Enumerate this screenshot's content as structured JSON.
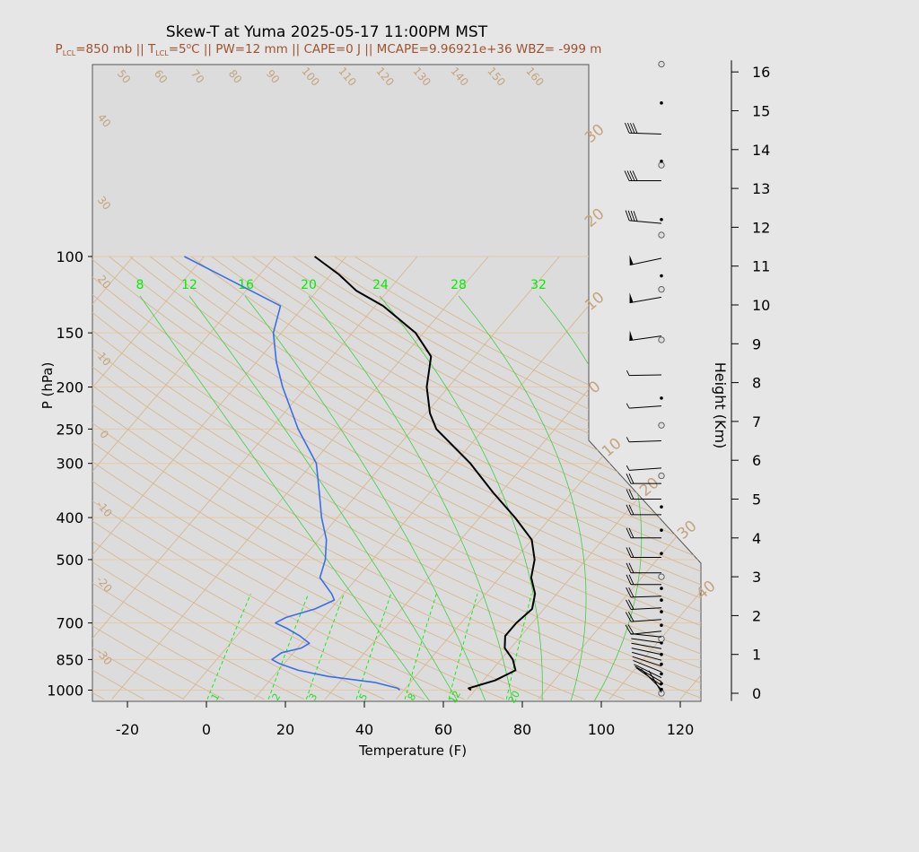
{
  "chart_data": {
    "type": "line",
    "title": "Skew-T at Yuma 2025-05-17 11:00PM MST",
    "subtitle": {
      "p_lcl": "=850 mb || T",
      "t_lcl": "=5",
      "pw_cape": "C || PW=12 mm || CAPE=0 J || MCAPE=9.96921e+36 WBZ= -999 m"
    },
    "xlabel": "Temperature (F)",
    "ylabel": "P (hPa)",
    "height_label": "Height (Km)",
    "x_ticks": [
      "-20",
      "0",
      "20",
      "40",
      "60",
      "80",
      "100",
      "120"
    ],
    "y_ticks": [
      "100",
      "150",
      "200",
      "250",
      "300",
      "400",
      "500",
      "700",
      "850",
      "1000"
    ],
    "height_ticks": [
      "0",
      "1",
      "2",
      "3",
      "4",
      "5",
      "6",
      "7",
      "8",
      "9",
      "10",
      "11",
      "12",
      "13",
      "14",
      "15",
      "16"
    ],
    "mixing_ratio_labels_top": [
      "8",
      "12",
      "16",
      "20",
      "24",
      "28",
      "32"
    ],
    "mixing_ratio_labels_bottom": [
      "1",
      "2",
      "3",
      "5",
      "8",
      "12",
      "20"
    ],
    "dry_adiabat_labels": [
      "50",
      "60",
      "70",
      "80",
      "90",
      "100",
      "110",
      "120",
      "130",
      "140",
      "150",
      "160"
    ],
    "left_isotherm_labels": [
      "40",
      "30",
      "20",
      "10",
      "0",
      "-10",
      "-20",
      "-30"
    ],
    "right_isotherm_labels": [
      "30",
      "20",
      "10",
      "0",
      "10",
      "20",
      "30",
      "40"
    ],
    "series": [
      {
        "name": "Temperature",
        "color": "#000000",
        "pressure": [
          1000,
          990,
          950,
          900,
          850,
          800,
          750,
          700,
          650,
          600,
          550,
          500,
          450,
          400,
          350,
          300,
          250,
          230,
          200,
          170,
          150,
          130,
          120,
          110,
          100
        ],
        "temperature_f": [
          67,
          66,
          71,
          74,
          71,
          66.5,
          64,
          64,
          65,
          62.5,
          58,
          55,
          50,
          41,
          30,
          18,
          2,
          -3,
          -9.5,
          -15,
          -24,
          -38,
          -48,
          -56,
          -66
        ]
      },
      {
        "name": "Dewpoint",
        "color": "#3a6de8",
        "pressure": [
          1000,
          990,
          960,
          930,
          900,
          870,
          850,
          820,
          800,
          780,
          750,
          720,
          700,
          680,
          650,
          620,
          600,
          550,
          500,
          450,
          400,
          350,
          300,
          250,
          200,
          175,
          150,
          130,
          100
        ],
        "temperature_f": [
          49,
          48,
          41,
          28,
          19,
          13,
          10,
          11,
          15,
          16,
          12,
          7,
          3,
          4.5,
          10,
          13,
          11,
          4.5,
          2,
          -2,
          -8,
          -14,
          -21,
          -33,
          -46,
          -53,
          -60,
          -64,
          -99
        ]
      }
    ],
    "wind_barbs": [
      {
        "km": 0.02,
        "shaft": 28,
        "ang": 60,
        "flags": 0,
        "full": 0,
        "half": 0
      },
      {
        "km": 0.1,
        "shaft": 32,
        "ang": 45,
        "flags": 0,
        "full": 0,
        "half": 0
      },
      {
        "km": 0.2,
        "shaft": 34,
        "ang": 35,
        "flags": 0,
        "full": 0,
        "half": 0
      },
      {
        "km": 0.3,
        "shaft": 34,
        "ang": 30,
        "flags": 0,
        "full": 0,
        "half": 0
      },
      {
        "km": 0.4,
        "shaft": 34,
        "ang": 26,
        "flags": 0,
        "full": 0,
        "half": 0
      },
      {
        "km": 0.55,
        "shaft": 34,
        "ang": 22,
        "flags": 0,
        "full": 0,
        "half": 0
      },
      {
        "km": 0.7,
        "shaft": 34,
        "ang": 18,
        "flags": 0,
        "full": 0,
        "half": 0
      },
      {
        "km": 0.85,
        "shaft": 34,
        "ang": 15,
        "flags": 0,
        "full": 0,
        "half": 0
      },
      {
        "km": 1.0,
        "shaft": 34,
        "ang": 12,
        "flags": 0,
        "full": 0,
        "half": 0
      },
      {
        "km": 1.15,
        "shaft": 34,
        "ang": 10,
        "flags": 0,
        "full": 0,
        "half": 0
      },
      {
        "km": 1.3,
        "shaft": 34,
        "ang": 8,
        "flags": 0,
        "full": 0,
        "half": 0
      },
      {
        "km": 1.45,
        "shaft": 34,
        "ang": 6,
        "flags": 0,
        "full": 0,
        "half": 0
      },
      {
        "km": 1.6,
        "shaft": 34,
        "ang": -6,
        "flags": 0,
        "full": 2,
        "half": 0
      },
      {
        "km": 1.9,
        "shaft": 34,
        "ang": -4,
        "flags": 0,
        "full": 2,
        "half": 0
      },
      {
        "km": 2.2,
        "shaft": 34,
        "ang": -3,
        "flags": 0,
        "full": 2,
        "half": 0
      },
      {
        "km": 2.5,
        "shaft": 34,
        "ang": -2,
        "flags": 0,
        "full": 2,
        "half": 0
      },
      {
        "km": 2.8,
        "shaft": 34,
        "ang": 0,
        "flags": 0,
        "full": 2,
        "half": 0
      },
      {
        "km": 3.1,
        "shaft": 34,
        "ang": 0,
        "flags": 0,
        "full": 2,
        "half": 0
      },
      {
        "km": 3.5,
        "shaft": 34,
        "ang": 0,
        "flags": 0,
        "full": 2,
        "half": 0
      },
      {
        "km": 4.0,
        "shaft": 34,
        "ang": 0,
        "flags": 0,
        "full": 2,
        "half": 0
      },
      {
        "km": 4.6,
        "shaft": 34,
        "ang": 0,
        "flags": 0,
        "full": 2,
        "half": 0
      },
      {
        "km": 5.0,
        "shaft": 34,
        "ang": 0,
        "flags": 0,
        "full": 2,
        "half": 0
      },
      {
        "km": 5.4,
        "shaft": 34,
        "ang": 0,
        "flags": 0,
        "full": 2,
        "half": 0
      },
      {
        "km": 5.8,
        "shaft": 36,
        "ang": -4,
        "flags": 0,
        "full": 0,
        "half": 1
      },
      {
        "km": 6.5,
        "shaft": 36,
        "ang": -2,
        "flags": 0,
        "full": 0,
        "half": 1
      },
      {
        "km": 7.4,
        "shaft": 36,
        "ang": -4,
        "flags": 0,
        "full": 0,
        "half": 1
      },
      {
        "km": 8.2,
        "shaft": 36,
        "ang": -1,
        "flags": 0,
        "full": 0,
        "half": 1
      },
      {
        "km": 9.2,
        "shaft": 36,
        "ang": -8,
        "flags": 1,
        "full": 0,
        "half": 0
      },
      {
        "km": 10.2,
        "shaft": 36,
        "ang": -10,
        "flags": 1,
        "full": 0,
        "half": 0
      },
      {
        "km": 11.2,
        "shaft": 36,
        "ang": -12,
        "flags": 1,
        "full": 0,
        "half": 0
      },
      {
        "km": 12.1,
        "shaft": 36,
        "ang": 5,
        "flags": 0,
        "full": 4,
        "half": 0
      },
      {
        "km": 13.2,
        "shaft": 36,
        "ang": 0,
        "flags": 0,
        "full": 4,
        "half": 0
      },
      {
        "km": 14.4,
        "shaft": 36,
        "ang": 2,
        "flags": 0,
        "full": 4,
        "half": 0
      }
    ],
    "height_markers": [
      {
        "km": 0.0,
        "symbol": "circle"
      },
      {
        "km": 0.1,
        "symbol": "dot"
      },
      {
        "km": 0.25,
        "symbol": "dot"
      },
      {
        "km": 0.5,
        "symbol": "dot"
      },
      {
        "km": 0.75,
        "symbol": "dot"
      },
      {
        "km": 1.0,
        "symbol": "dot"
      },
      {
        "km": 1.3,
        "symbol": "dot"
      },
      {
        "km": 1.4,
        "symbol": "circle"
      },
      {
        "km": 1.75,
        "symbol": "dot"
      },
      {
        "km": 2.1,
        "symbol": "dot"
      },
      {
        "km": 2.4,
        "symbol": "dot"
      },
      {
        "km": 2.7,
        "symbol": "dot"
      },
      {
        "km": 3.0,
        "symbol": "circle"
      },
      {
        "km": 3.6,
        "symbol": "dot"
      },
      {
        "km": 4.2,
        "symbol": "dot"
      },
      {
        "km": 4.8,
        "symbol": "dot"
      },
      {
        "km": 5.6,
        "symbol": "circle"
      },
      {
        "km": 6.9,
        "symbol": "circle"
      },
      {
        "km": 7.6,
        "symbol": "dot"
      },
      {
        "km": 9.1,
        "symbol": "circle"
      },
      {
        "km": 10.4,
        "symbol": "circle"
      },
      {
        "km": 10.75,
        "symbol": "dot"
      },
      {
        "km": 11.8,
        "symbol": "circle"
      },
      {
        "km": 12.2,
        "symbol": "dot"
      },
      {
        "km": 13.6,
        "symbol": "circle"
      },
      {
        "km": 13.7,
        "symbol": "dot"
      },
      {
        "km": 15.2,
        "symbol": "dot"
      },
      {
        "km": 16.2,
        "symbol": "circle"
      }
    ],
    "xlim": [
      -28,
      125
    ],
    "ylim": [
      1050,
      100
    ],
    "log_pressure": true,
    "grid": true,
    "colors": {
      "background": "#e6e6e6",
      "plot_background": "#dcdcdc",
      "isobar": "#e6c9a8",
      "isotherm": "#d8b890",
      "dry_adiabat": "#d8b890",
      "mixing_ratio": "#00ee00",
      "moist_adiabat": "#44cc44",
      "subtitle": "#a0522d",
      "label_tan": "#c4a47c"
    }
  }
}
